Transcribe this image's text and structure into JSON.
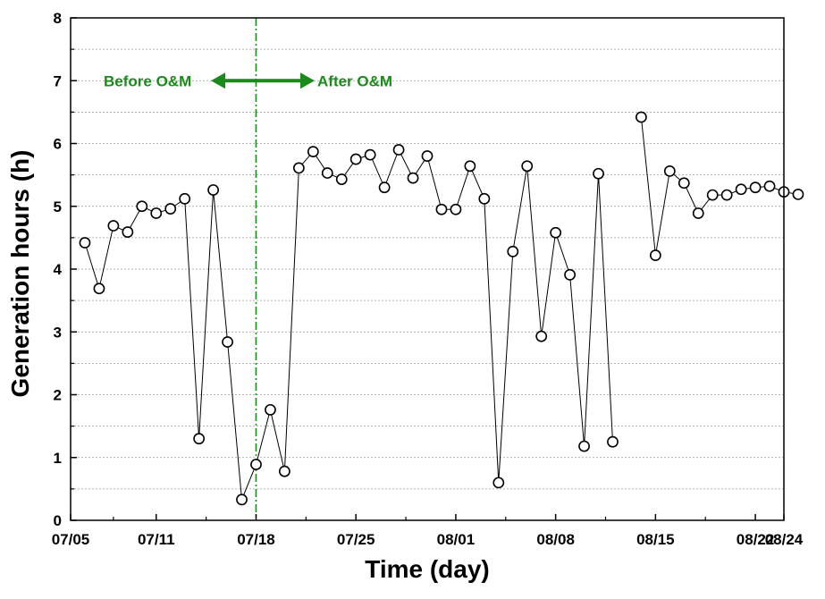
{
  "chart_data": {
    "type": "scatter",
    "xlabel": "Time (day)",
    "ylabel": "Generation hours (h)",
    "ylim": [
      0,
      8
    ],
    "xlim": [
      "2019-07-05",
      "2019-08-24"
    ],
    "x_ticks": [
      "07/05",
      "07/11",
      "07/18",
      "07/25",
      "08/01",
      "08/08",
      "08/15",
      "08/22",
      "08/24"
    ],
    "y_ticks": [
      "0",
      "1",
      "2",
      "3",
      "4",
      "5",
      "6",
      "7",
      "8"
    ],
    "grid": "horizontal dashed",
    "line_color": "#000000",
    "annotation_color": "#1a8a1a",
    "annotations": {
      "before": "Before O&M",
      "after": "After O&M",
      "divider_date": "2019-07-18"
    },
    "segments": [
      [
        [
          "2019-07-06",
          4.42
        ],
        [
          "2019-07-07",
          3.69
        ],
        [
          "2019-07-08",
          4.69
        ],
        [
          "2019-07-09",
          4.59
        ],
        [
          "2019-07-10",
          5.0
        ],
        [
          "2019-07-11",
          4.89
        ],
        [
          "2019-07-12",
          4.96
        ],
        [
          "2019-07-13",
          5.12
        ],
        [
          "2019-07-14",
          1.3
        ],
        [
          "2019-07-15",
          5.26
        ],
        [
          "2019-07-16",
          2.84
        ],
        [
          "2019-07-17",
          0.33
        ],
        [
          "2019-07-18",
          0.89
        ],
        [
          "2019-07-19",
          1.76
        ],
        [
          "2019-07-20",
          0.78
        ],
        [
          "2019-07-21",
          5.61
        ],
        [
          "2019-07-22",
          5.87
        ],
        [
          "2019-07-23",
          5.53
        ],
        [
          "2019-07-24",
          5.43
        ],
        [
          "2019-07-25",
          5.75
        ],
        [
          "2019-07-26",
          5.82
        ],
        [
          "2019-07-27",
          5.3
        ],
        [
          "2019-07-28",
          5.9
        ],
        [
          "2019-07-29",
          5.45
        ],
        [
          "2019-07-30",
          5.8
        ],
        [
          "2019-07-31",
          4.95
        ],
        [
          "2019-08-01",
          4.95
        ],
        [
          "2019-08-02",
          5.64
        ],
        [
          "2019-08-03",
          5.12
        ],
        [
          "2019-08-04",
          0.6
        ],
        [
          "2019-08-05",
          4.28
        ],
        [
          "2019-08-06",
          5.64
        ],
        [
          "2019-08-07",
          2.93
        ],
        [
          "2019-08-08",
          4.58
        ],
        [
          "2019-08-09",
          3.91
        ],
        [
          "2019-08-10",
          1.18
        ],
        [
          "2019-08-11",
          5.52
        ],
        [
          "2019-08-12",
          1.25
        ]
      ],
      [
        [
          "2019-08-14",
          6.42
        ],
        [
          "2019-08-15",
          4.22
        ],
        [
          "2019-08-16",
          5.56
        ],
        [
          "2019-08-17",
          5.37
        ],
        [
          "2019-08-18",
          4.89
        ],
        [
          "2019-08-19",
          5.18
        ],
        [
          "2019-08-20",
          5.18
        ],
        [
          "2019-08-21",
          5.27
        ],
        [
          "2019-08-22",
          5.3
        ],
        [
          "2019-08-23",
          5.32
        ],
        [
          "2019-08-24",
          5.23
        ],
        [
          "2019-08-25",
          5.19
        ]
      ]
    ]
  }
}
